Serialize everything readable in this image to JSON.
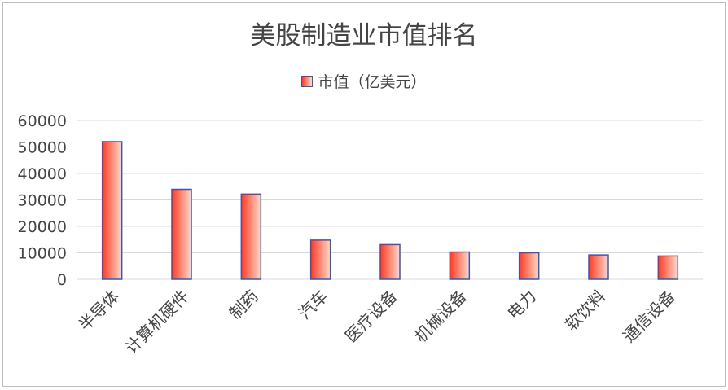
{
  "chart_data": {
    "type": "bar",
    "title": "美股制造业市值排名",
    "legend_position": "top",
    "grid": true,
    "series": [
      {
        "name": "市值（亿美元）",
        "values": [
          52000,
          34000,
          32200,
          14800,
          13100,
          10300,
          10000,
          9200,
          8800
        ]
      }
    ],
    "categories": [
      "半导体",
      "计算机硬件",
      "制药",
      "汽车",
      "医疗设备",
      "机械设备",
      "电力",
      "软饮料",
      "通信设备"
    ],
    "ylim": [
      0,
      60000
    ],
    "yticks": [
      "0",
      "10000",
      "20000",
      "30000",
      "40000",
      "50000",
      "60000"
    ],
    "colors": {
      "bar_left": "#ff3a25",
      "bar_right": "#ffd9c7",
      "bar_border": "#3f57a6",
      "grid": "#d9d9d9",
      "text": "#444444"
    }
  }
}
